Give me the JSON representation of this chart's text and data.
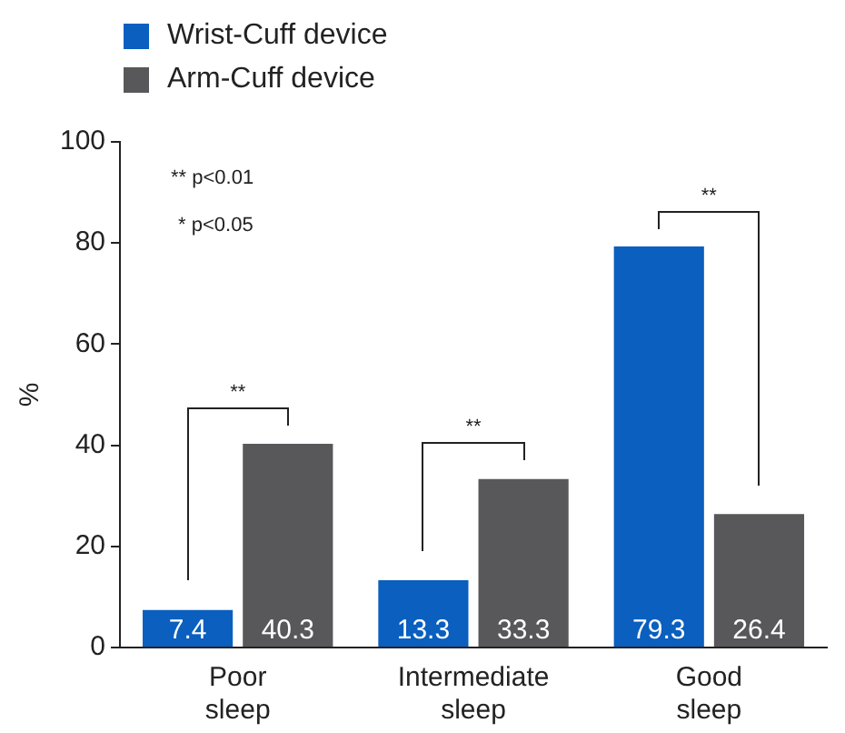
{
  "chart_data": {
    "type": "bar",
    "ylabel": "%",
    "categories": [
      "Poor sleep",
      "Intermediate sleep",
      "Good sleep"
    ],
    "series": [
      {
        "name": "Wrist-Cuff device",
        "color": "#0a5fbf",
        "values": [
          7.4,
          13.3,
          79.3
        ]
      },
      {
        "name": "Arm-Cuff device",
        "color": "#58585a",
        "values": [
          40.3,
          33.3,
          26.4
        ]
      }
    ],
    "ylim": [
      0,
      100
    ],
    "yticks": [
      0,
      20,
      40,
      60,
      80,
      100
    ],
    "grid": false,
    "legend": "top left",
    "data_labels": true,
    "annotations": [
      "** p<0.01",
      "* p<0.05",
      "**",
      "**",
      "**"
    ]
  }
}
